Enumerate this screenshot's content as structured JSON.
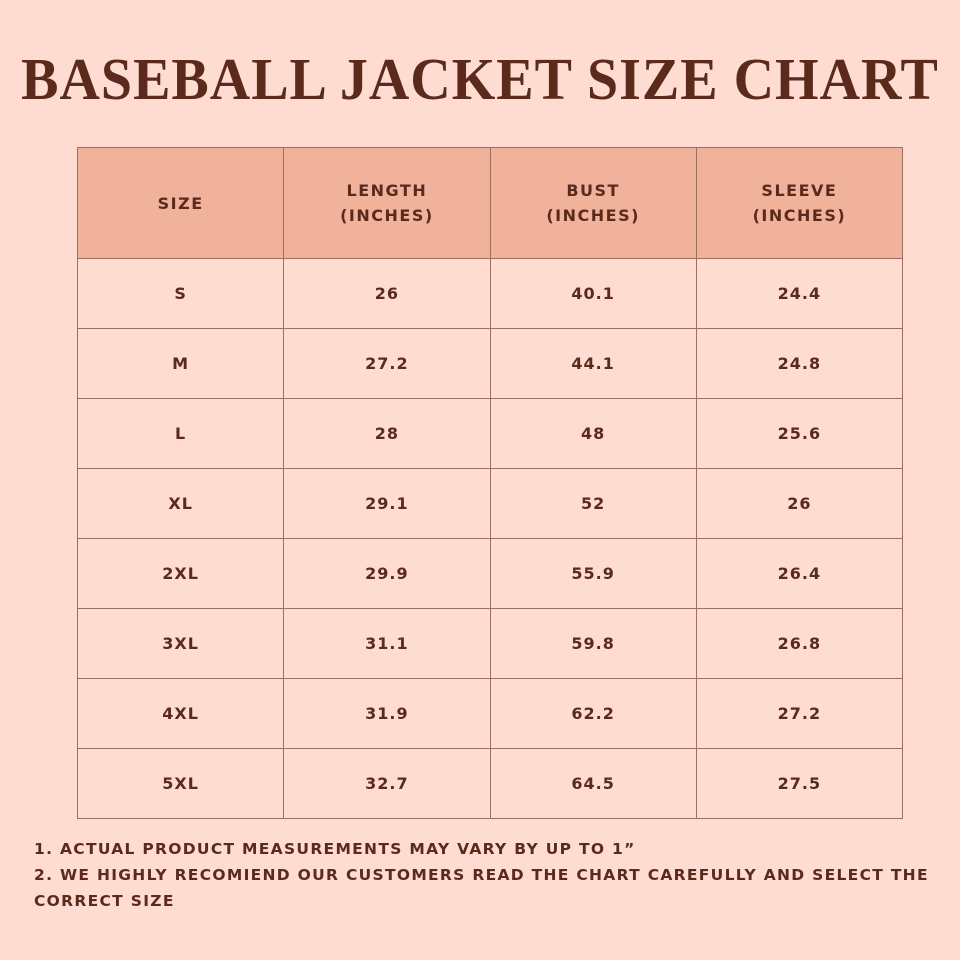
{
  "title": "BASEBALL JACKET SIZE CHART",
  "table": {
    "headers": [
      {
        "line1": "SIZE",
        "line2": ""
      },
      {
        "line1": "LENGTH",
        "line2": "(INCHES)"
      },
      {
        "line1": "BUST",
        "line2": "(INCHES)"
      },
      {
        "line1": "SLEEVE",
        "line2": "(INCHES)"
      }
    ],
    "rows": [
      [
        "S",
        "26",
        "40.1",
        "24.4"
      ],
      [
        "M",
        "27.2",
        "44.1",
        "24.8"
      ],
      [
        "L",
        "28",
        "48",
        "25.6"
      ],
      [
        "XL",
        "29.1",
        "52",
        "26"
      ],
      [
        "2XL",
        "29.9",
        "55.9",
        "26.4"
      ],
      [
        "3XL",
        "31.1",
        "59.8",
        "26.8"
      ],
      [
        "4XL",
        "31.9",
        "62.2",
        "27.2"
      ],
      [
        "5XL",
        "32.7",
        "64.5",
        "27.5"
      ]
    ]
  },
  "notes": [
    "1. ACTUAL PRODUCT MEASUREMENTS MAY VARY BY UP TO 1”",
    "2. WE HIGHLY RECOMIEND OUR CUSTOMERS READ THE CHART CAREFULLY AND SELECT THE CORRECT SIZE"
  ],
  "colors": {
    "background": "#fedcd1",
    "header": "#f0b29b",
    "text": "#5b2a1c",
    "border": "#9c6f5f"
  }
}
